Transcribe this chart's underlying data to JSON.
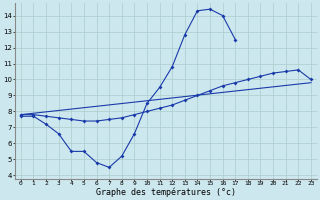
{
  "xlabel": "Graphe des températures (°c)",
  "background_color": "#cce8ee",
  "grid_color": "#aacccc",
  "line_color": "#1a3aaa",
  "xlim": [
    -0.5,
    23.5
  ],
  "ylim": [
    3.8,
    14.8
  ],
  "yticks": [
    4,
    5,
    6,
    7,
    8,
    9,
    10,
    11,
    12,
    13,
    14
  ],
  "xticks": [
    0,
    1,
    2,
    3,
    4,
    5,
    6,
    7,
    8,
    9,
    10,
    11,
    12,
    13,
    14,
    15,
    16,
    17,
    18,
    19,
    20,
    21,
    22,
    23
  ],
  "series1_x": [
    0,
    1,
    2,
    3,
    4,
    5,
    6,
    7,
    8,
    9,
    10,
    11,
    12,
    13,
    14,
    15,
    16,
    17
  ],
  "series1_y": [
    7.7,
    7.7,
    7.2,
    6.6,
    5.5,
    5.5,
    4.8,
    4.5,
    5.2,
    6.6,
    8.5,
    9.5,
    10.8,
    12.8,
    14.3,
    14.4,
    14.0,
    12.5
  ],
  "series2_x": [
    0,
    1,
    2,
    3,
    4,
    5,
    6,
    7,
    8,
    9,
    10,
    11,
    12,
    13,
    14,
    15,
    16,
    17,
    18,
    19,
    20,
    21,
    22,
    23
  ],
  "series2_y": [
    7.8,
    7.8,
    7.7,
    7.6,
    7.5,
    7.4,
    7.4,
    7.5,
    7.6,
    7.8,
    8.0,
    8.2,
    8.4,
    8.7,
    9.0,
    9.3,
    9.6,
    9.8,
    10.0,
    10.2,
    10.4,
    10.5,
    10.6,
    10.0
  ],
  "series3_x": [
    0,
    23
  ],
  "series3_y": [
    7.8,
    9.8
  ]
}
